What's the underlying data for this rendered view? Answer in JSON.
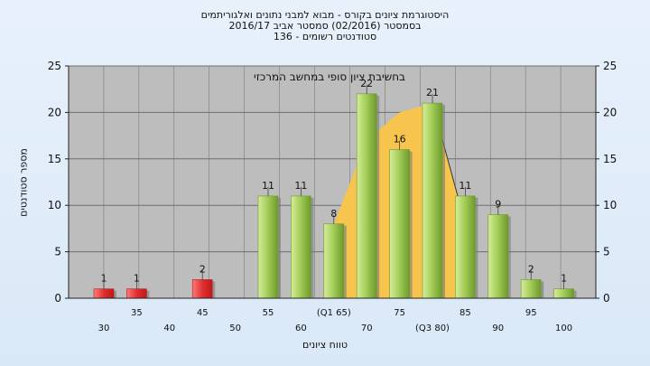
{
  "title_lines": [
    "היסטוגרמת ציונים בקורס - מבוא למבני נתונים ואלגוריתמים",
    "בסמסטר  (02/2016)  סמסטר אביב 2016/17",
    "סטודנטים רשומים - 136"
  ],
  "chart_data": {
    "type": "bar",
    "title": "היסטוגרמת ציונים בקורס - מבוא למבני נתונים ואלגוריתמים",
    "ylabel": "מספר סטודנטים",
    "xlabel": "טווח ציונים",
    "ylim": [
      0,
      25
    ],
    "yticks": [
      0,
      5,
      10,
      15,
      20,
      25
    ],
    "x_tick_labels": [
      {
        "x": 30,
        "label": "30",
        "row": 2
      },
      {
        "x": 35,
        "label": "35",
        "row": 1
      },
      {
        "x": 40,
        "label": "40",
        "row": 2
      },
      {
        "x": 45,
        "label": "45",
        "row": 1
      },
      {
        "x": 50,
        "label": "50",
        "row": 2
      },
      {
        "x": 55,
        "label": "55",
        "row": 1
      },
      {
        "x": 60,
        "label": "60",
        "row": 2
      },
      {
        "x": 65,
        "label": "(Q1 65)",
        "row": 1
      },
      {
        "x": 70,
        "label": "70",
        "row": 2
      },
      {
        "x": 75,
        "label": "75",
        "row": 1
      },
      {
        "x": 80,
        "label": "(Q3 80)",
        "row": 2
      },
      {
        "x": 85,
        "label": "85",
        "row": 1
      },
      {
        "x": 90,
        "label": "90",
        "row": 2
      },
      {
        "x": 95,
        "label": "95",
        "row": 1
      },
      {
        "x": 100,
        "label": "100",
        "row": 2
      }
    ],
    "bars": [
      {
        "x": 30,
        "value": 1,
        "label": "1",
        "color": "red"
      },
      {
        "x": 35,
        "value": 1,
        "label": "1",
        "color": "red"
      },
      {
        "x": 45,
        "value": 2,
        "label": "2",
        "color": "red"
      },
      {
        "x": 55,
        "value": 11,
        "label": "11",
        "color": "green"
      },
      {
        "x": 60,
        "value": 11,
        "label": "11",
        "color": "green"
      },
      {
        "x": 65,
        "value": 8,
        "label": "8",
        "color": "green"
      },
      {
        "x": 70,
        "value": 22,
        "label": "22",
        "color": "green"
      },
      {
        "x": 75,
        "value": 16,
        "label": "16",
        "color": "green"
      },
      {
        "x": 80,
        "value": 21,
        "label": "21",
        "color": "green"
      },
      {
        "x": 85,
        "value": 11,
        "label": "11",
        "color": "green"
      },
      {
        "x": 90,
        "value": 9,
        "label": "9",
        "color": "green"
      },
      {
        "x": 95,
        "value": 2,
        "label": "2",
        "color": "green"
      },
      {
        "x": 100,
        "value": 1,
        "label": "1",
        "color": "green"
      }
    ],
    "iqr_area": [
      {
        "x": 65,
        "y": 8
      },
      {
        "x": 70,
        "y": 17
      },
      {
        "x": 75,
        "y": 20
      },
      {
        "x": 80,
        "y": 21
      },
      {
        "x": 85,
        "y": 8
      }
    ],
    "annotation": "בחשיבת ציון סופי במחשב המרכזי",
    "grid": true,
    "colors": {
      "plot_bg": "#bdbdbd",
      "area": "#f7c54d",
      "bar_green_light": "#d6ec9a",
      "bar_green_dark": "#6d9a2b",
      "bar_red_light": "#ff7a7a",
      "bar_red_dark": "#c01818",
      "grid": "#6e6e6e"
    }
  }
}
